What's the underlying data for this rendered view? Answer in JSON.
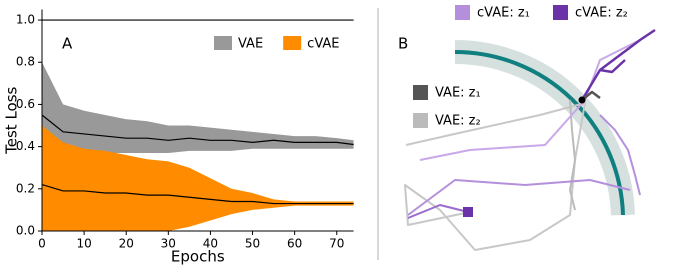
{
  "chart_data": {
    "type": "band",
    "panel_label": "A",
    "x_label": "Epochs",
    "y_label": "Test Loss",
    "x": [
      0,
      5,
      10,
      15,
      20,
      25,
      30,
      35,
      40,
      45,
      50,
      55,
      60,
      65,
      70,
      74
    ],
    "series": [
      {
        "name": "VAE",
        "color": "#999999",
        "line_color": "#000000",
        "values": [
          0.55,
          0.47,
          0.46,
          0.45,
          0.44,
          0.44,
          0.43,
          0.44,
          0.43,
          0.43,
          0.42,
          0.43,
          0.42,
          0.42,
          0.42,
          0.41
        ],
        "upper": [
          0.8,
          0.6,
          0.57,
          0.55,
          0.53,
          0.52,
          0.5,
          0.5,
          0.49,
          0.48,
          0.47,
          0.46,
          0.45,
          0.45,
          0.44,
          0.43
        ],
        "lower": [
          0.4,
          0.38,
          0.37,
          0.37,
          0.37,
          0.37,
          0.37,
          0.38,
          0.38,
          0.38,
          0.39,
          0.39,
          0.39,
          0.39,
          0.39,
          0.39
        ]
      },
      {
        "name": "cVAE",
        "color": "#ff8c00",
        "line_color": "#000000",
        "values": [
          0.22,
          0.19,
          0.19,
          0.18,
          0.18,
          0.17,
          0.17,
          0.16,
          0.15,
          0.14,
          0.14,
          0.13,
          0.13,
          0.13,
          0.13,
          0.13
        ],
        "upper": [
          0.5,
          0.42,
          0.39,
          0.38,
          0.36,
          0.34,
          0.33,
          0.3,
          0.25,
          0.2,
          0.18,
          0.15,
          0.14,
          0.14,
          0.14,
          0.14
        ],
        "lower": [
          0.0,
          0.0,
          0.0,
          0.0,
          0.0,
          0.0,
          0.0,
          0.02,
          0.05,
          0.08,
          0.1,
          0.11,
          0.12,
          0.12,
          0.12,
          0.12
        ]
      }
    ],
    "hline": 1.0,
    "xlim": [
      0,
      74
    ],
    "xticks": [
      0,
      10,
      20,
      30,
      40,
      50,
      60,
      70
    ],
    "ylim": [
      0,
      1.05
    ],
    "yticks": [
      {
        "value": 0,
        "label": "0.0"
      },
      {
        "value": 0.2,
        "label": "0.2"
      },
      {
        "value": 0.4,
        "label": "0.4"
      },
      {
        "value": 0.6,
        "label": "0.6"
      },
      {
        "value": 0.8,
        "label": "0.8"
      },
      {
        "value": 1.0,
        "label": "1.0"
      }
    ],
    "legend": "upper right"
  },
  "diagram": {
    "panel_label": "B",
    "legend": [
      {
        "label": "cVAE: z₁",
        "color": "#b48fdc"
      },
      {
        "label": "cVAE: z₂",
        "color": "#6a34a8"
      },
      {
        "label": "VAE: z₁",
        "color": "#555555"
      },
      {
        "label": "VAE: z₂",
        "color": "#bbbbbb"
      }
    ]
  }
}
